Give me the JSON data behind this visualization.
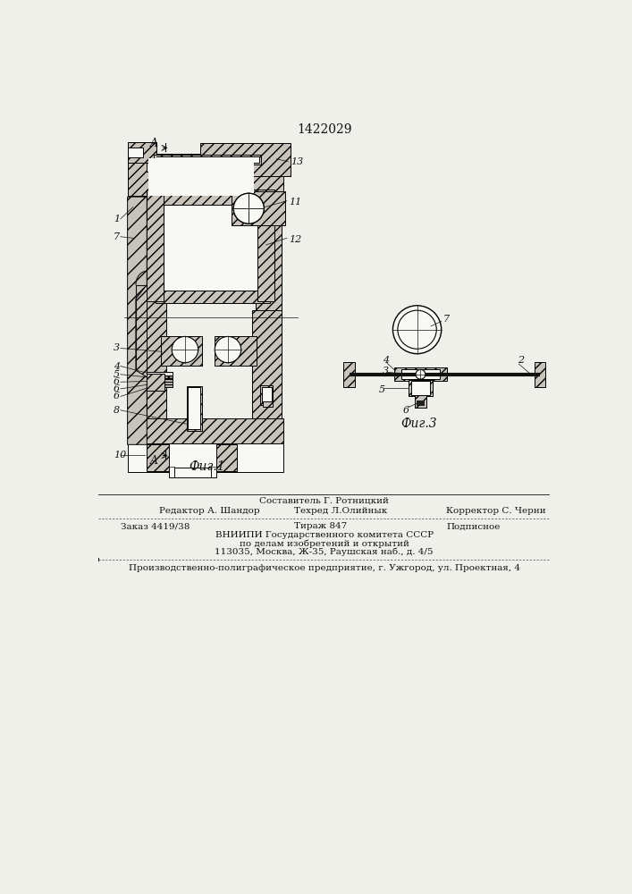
{
  "title": "1422029",
  "bg_color": "#f0f0eb",
  "fig1_caption": "Фиг.1",
  "fig3_caption": "Фиг.3",
  "footer_lines": [
    "Составитель Г. Ротницкий",
    "Редактор А. Шандор",
    "Техред Л.Олийнык",
    "Корректор С. Черни",
    "Заказ 4419/38",
    "Тираж 847",
    "Подписное",
    "ВНИИПИ Государственного комитета СССР",
    "по делам изобретений и открытий",
    "113035, Москва, Ж-35, Раушская наб., д. 4/5",
    "Производственно-полиграфическое предприятие, г. Ужгород, ул. Проектная, 4"
  ],
  "hf": "#c8c4bc",
  "lc": "#111111",
  "wc": "#f8f8f4"
}
